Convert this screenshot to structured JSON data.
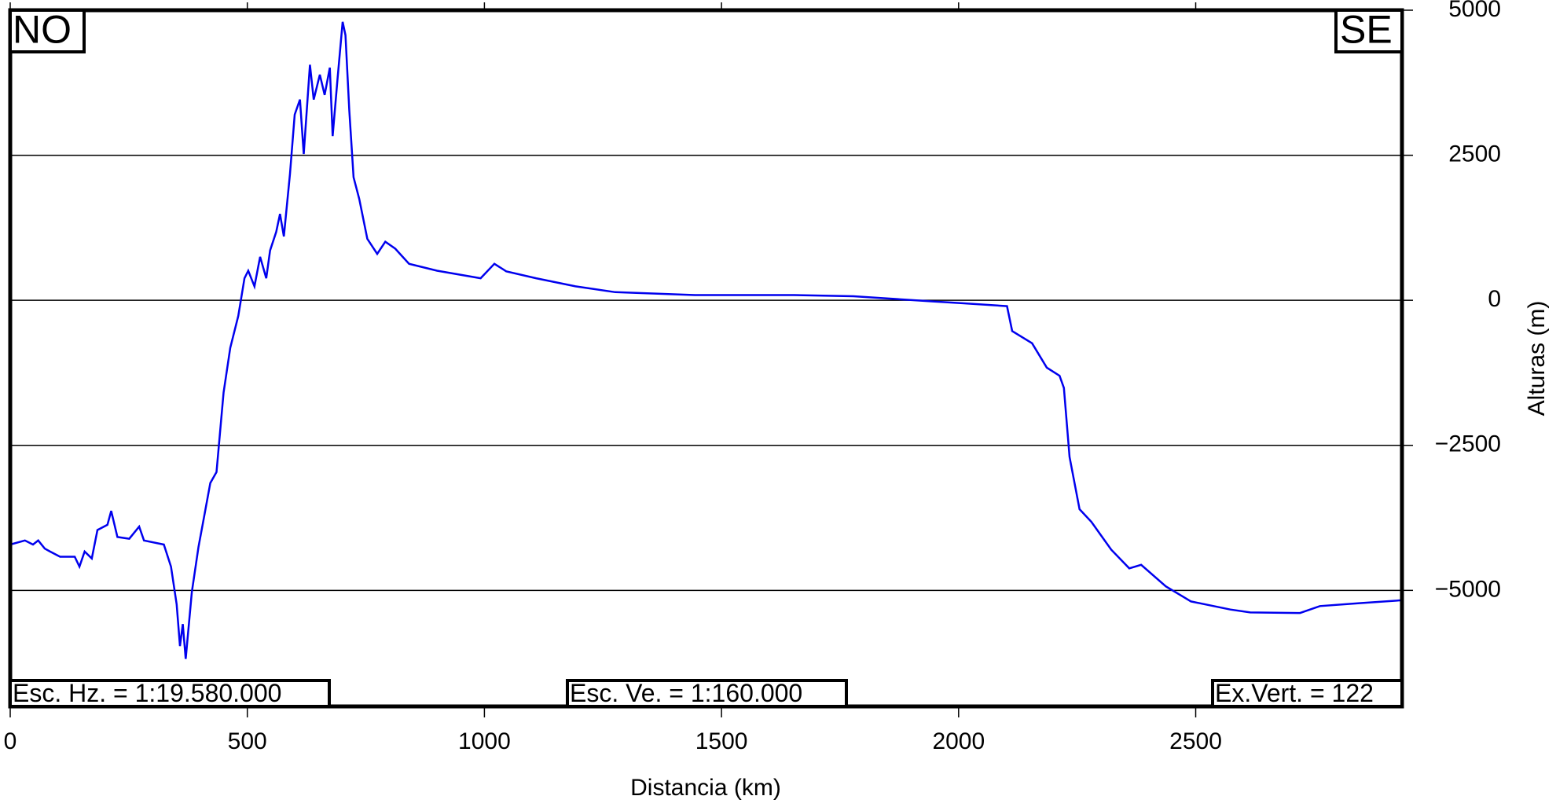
{
  "chart_data": {
    "type": "line",
    "x_label": "Distancia (km)",
    "y_label": "Alturas (m)",
    "left_label": "NO",
    "right_label": "SE",
    "scale_labels": [
      "Esc. Hz. = 1:19.580.000",
      "Esc. Ve. = 1:160.000",
      "Ex.Vert. = 122"
    ],
    "color": "#0000ee",
    "grid": true,
    "xlim": [
      0,
      2935
    ],
    "ylim": [
      -7000,
      5000
    ],
    "xticks": [
      0,
      500,
      1000,
      1500,
      2000,
      2500
    ],
    "yticks": [
      5000,
      2500,
      0,
      {
        "value": -2500,
        "label": "−2500"
      },
      {
        "value": -5000,
        "label": "−5000"
      }
    ],
    "x": [
      0,
      31,
      48,
      59,
      73,
      84,
      105,
      136,
      146,
      157,
      172,
      184,
      205,
      213,
      226,
      251,
      272,
      282,
      324,
      339,
      351,
      358,
      364,
      370,
      383,
      397,
      410,
      422,
      435,
      450,
      464,
      481,
      494,
      502,
      515,
      527,
      540,
      548,
      561,
      569,
      577,
      590,
      600,
      611,
      619,
      632,
      640,
      653,
      663,
      674,
      680,
      690,
      701,
      707,
      715,
      724,
      736,
      753,
      774,
      791,
      812,
      841,
      900,
      992,
      1021,
      1046,
      1109,
      1192,
      1276,
      1444,
      1653,
      1778,
      1946,
      2008,
      2102,
      2113,
      2155,
      2186,
      2213,
      2222,
      2234,
      2255,
      2280,
      2322,
      2360,
      2385,
      2437,
      2490,
      2573,
      2615,
      2720,
      2762,
      2845,
      2935
    ],
    "values": [
      -4210,
      -4140,
      -4210,
      -4140,
      -4280,
      -4330,
      -4420,
      -4420,
      -4590,
      -4330,
      -4450,
      -3960,
      -3870,
      -3630,
      -4080,
      -4110,
      -3900,
      -4140,
      -4210,
      -4590,
      -5240,
      -5960,
      -5580,
      -6180,
      -5030,
      -4250,
      -3680,
      -3150,
      -2960,
      -1590,
      -820,
      -270,
      380,
      510,
      240,
      750,
      380,
      860,
      1180,
      1490,
      1100,
      2180,
      3200,
      3460,
      2520,
      4060,
      3460,
      3890,
      3540,
      4010,
      2830,
      3800,
      4800,
      4570,
      3290,
      2120,
      1750,
      1060,
      800,
      1010,
      890,
      630,
      510,
      380,
      630,
      500,
      380,
      240,
      140,
      90,
      90,
      70,
      -20,
      -50,
      -100,
      -530,
      -740,
      -1160,
      -1300,
      -1510,
      -2700,
      -3600,
      -3820,
      -4300,
      -4620,
      -4560,
      -4930,
      -5190,
      -5330,
      -5380,
      -5390,
      -5270,
      -5220,
      -5170
    ]
  }
}
